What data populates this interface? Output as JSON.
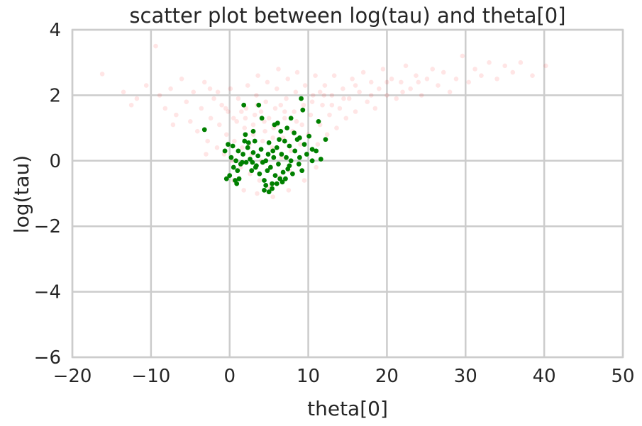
{
  "chart_data": {
    "type": "scatter",
    "title": "scatter plot between log(tau) and theta[0]",
    "xlabel": "theta[0]",
    "ylabel": "log(tau)",
    "xlim": [
      -20,
      50
    ],
    "ylim": [
      -6,
      4
    ],
    "xticks": [
      -20,
      -10,
      0,
      10,
      20,
      30,
      40,
      50
    ],
    "yticks": [
      -6,
      -4,
      -2,
      0,
      2,
      4
    ],
    "xtick_labels": [
      "−20",
      "−10",
      "0",
      "10",
      "20",
      "30",
      "40",
      "50"
    ],
    "ytick_labels": [
      "−6",
      "−4",
      "−2",
      "0",
      "2",
      "4"
    ],
    "grid": true,
    "series": [
      {
        "color": "#ff0000",
        "alpha": 0.1,
        "points": [
          [
            -16.2,
            2.65
          ],
          [
            -13.5,
            2.1
          ],
          [
            -11.8,
            1.9
          ],
          [
            -10.6,
            2.3
          ],
          [
            -9.4,
            3.5
          ],
          [
            -8.9,
            2.0
          ],
          [
            -8.2,
            1.6
          ],
          [
            -7.5,
            2.2
          ],
          [
            -6.8,
            1.4
          ],
          [
            -6.1,
            2.5
          ],
          [
            -5.5,
            1.8
          ],
          [
            -5.0,
            1.2
          ],
          [
            -4.6,
            2.1
          ],
          [
            -4.1,
            0.9
          ],
          [
            -3.6,
            1.6
          ],
          [
            -3.2,
            2.4
          ],
          [
            -2.8,
            0.6
          ],
          [
            -2.4,
            1.3
          ],
          [
            -2.0,
            1.9
          ],
          [
            -1.6,
            0.4
          ],
          [
            -1.3,
            1.1
          ],
          [
            -1.0,
            1.7
          ],
          [
            -0.7,
            0.2
          ],
          [
            -0.4,
            0.8
          ],
          [
            -0.2,
            1.5
          ],
          [
            0.1,
            2.2
          ],
          [
            0.3,
            0.0
          ],
          [
            0.6,
            0.6
          ],
          [
            0.9,
            1.2
          ],
          [
            1.1,
            1.9
          ],
          [
            1.4,
            -0.2
          ],
          [
            1.6,
            0.4
          ],
          [
            1.9,
            1.0
          ],
          [
            2.1,
            1.6
          ],
          [
            2.3,
            2.3
          ],
          [
            2.6,
            -0.4
          ],
          [
            2.8,
            0.2
          ],
          [
            3.0,
            0.8
          ],
          [
            3.2,
            1.4
          ],
          [
            3.4,
            2.0
          ],
          [
            3.6,
            2.6
          ],
          [
            3.8,
            -0.6
          ],
          [
            4.0,
            0.0
          ],
          [
            4.2,
            0.6
          ],
          [
            4.4,
            1.2
          ],
          [
            4.6,
            1.8
          ],
          [
            4.8,
            2.4
          ],
          [
            5.0,
            -0.8
          ],
          [
            5.2,
            -0.2
          ],
          [
            5.4,
            0.4
          ],
          [
            5.6,
            1.0
          ],
          [
            5.8,
            1.6
          ],
          [
            6.0,
            2.2
          ],
          [
            6.2,
            2.8
          ],
          [
            6.4,
            -0.5
          ],
          [
            6.6,
            0.1
          ],
          [
            6.8,
            0.7
          ],
          [
            7.0,
            1.3
          ],
          [
            7.2,
            1.9
          ],
          [
            7.4,
            2.5
          ],
          [
            7.6,
            -0.3
          ],
          [
            7.8,
            0.3
          ],
          [
            8.0,
            0.9
          ],
          [
            8.2,
            1.5
          ],
          [
            8.4,
            2.1
          ],
          [
            8.6,
            2.7
          ],
          [
            8.8,
            -0.1
          ],
          [
            9.0,
            0.5
          ],
          [
            9.2,
            1.1
          ],
          [
            9.4,
            1.7
          ],
          [
            9.6,
            2.3
          ],
          [
            9.8,
            0.2
          ],
          [
            10.0,
            0.8
          ],
          [
            10.3,
            1.4
          ],
          [
            10.6,
            2.0
          ],
          [
            10.9,
            2.6
          ],
          [
            11.2,
            0.5
          ],
          [
            11.5,
            1.1
          ],
          [
            11.8,
            1.7
          ],
          [
            12.1,
            2.3
          ],
          [
            12.4,
            0.8
          ],
          [
            12.7,
            1.4
          ],
          [
            13.0,
            2.0
          ],
          [
            13.3,
            2.6
          ],
          [
            13.6,
            1.0
          ],
          [
            14.0,
            1.6
          ],
          [
            14.4,
            2.2
          ],
          [
            14.8,
            1.3
          ],
          [
            15.2,
            1.9
          ],
          [
            15.6,
            2.5
          ],
          [
            16.0,
            1.5
          ],
          [
            16.5,
            2.1
          ],
          [
            17.0,
            2.7
          ],
          [
            17.5,
            1.8
          ],
          [
            18.0,
            2.4
          ],
          [
            18.5,
            1.6
          ],
          [
            19.0,
            2.2
          ],
          [
            19.5,
            2.8
          ],
          [
            20.0,
            2.0
          ],
          [
            20.6,
            2.5
          ],
          [
            21.2,
            1.9
          ],
          [
            21.8,
            2.4
          ],
          [
            22.4,
            2.9
          ],
          [
            23.0,
            2.2
          ],
          [
            23.7,
            2.6
          ],
          [
            24.4,
            2.0
          ],
          [
            25.1,
            2.5
          ],
          [
            25.8,
            2.8
          ],
          [
            26.5,
            2.3
          ],
          [
            27.2,
            2.7
          ],
          [
            28.0,
            2.1
          ],
          [
            28.8,
            2.5
          ],
          [
            29.6,
            3.2
          ],
          [
            30.4,
            2.4
          ],
          [
            31.2,
            2.8
          ],
          [
            32.0,
            2.6
          ],
          [
            33.0,
            3.0
          ],
          [
            34.0,
            2.5
          ],
          [
            35.0,
            2.9
          ],
          [
            36.0,
            2.7
          ],
          [
            37.0,
            3.0
          ],
          [
            38.5,
            2.6
          ],
          [
            40.2,
            2.9
          ],
          [
            -12.5,
            1.7
          ],
          [
            -7.2,
            1.1
          ],
          [
            -3.0,
            0.2
          ],
          [
            0.5,
            -0.6
          ],
          [
            1.8,
            -0.9
          ],
          [
            3.5,
            -1.0
          ],
          [
            5.5,
            -1.1
          ],
          [
            7.5,
            -0.9
          ],
          [
            9.5,
            -0.6
          ],
          [
            11.0,
            -0.2
          ],
          [
            2.0,
            1.3
          ],
          [
            3.0,
            1.1
          ],
          [
            4.0,
            1.5
          ],
          [
            5.0,
            1.3
          ],
          [
            6.0,
            1.1
          ],
          [
            7.0,
            1.5
          ],
          [
            4.5,
            0.9
          ],
          [
            5.5,
            0.7
          ],
          [
            6.5,
            1.7
          ],
          [
            3.5,
            1.7
          ],
          [
            8.5,
            1.2
          ],
          [
            2.5,
            0.5
          ],
          [
            1.5,
            1.5
          ],
          [
            0.5,
            1.3
          ],
          [
            -0.5,
            1.6
          ],
          [
            -1.5,
            2.1
          ],
          [
            -2.5,
            2.2
          ],
          [
            12.0,
            2.0
          ],
          [
            13.0,
            1.7
          ],
          [
            14.5,
            1.9
          ],
          [
            16.0,
            2.3
          ],
          [
            18.0,
            2.0
          ],
          [
            20.0,
            2.4
          ],
          [
            22.0,
            2.1
          ],
          [
            24.0,
            2.4
          ],
          [
            10.5,
            1.8
          ],
          [
            11.5,
            2.1
          ]
        ]
      },
      {
        "color": "#008000",
        "alpha": 1.0,
        "points": [
          [
            -3.2,
            0.95
          ],
          [
            -0.6,
            0.3
          ],
          [
            -0.2,
            0.5
          ],
          [
            0.2,
            0.1
          ],
          [
            0.5,
            -0.2
          ],
          [
            -0.4,
            -0.55
          ],
          [
            0.0,
            -0.45
          ],
          [
            0.7,
            -0.6
          ],
          [
            0.9,
            -0.7
          ],
          [
            1.2,
            -0.55
          ],
          [
            0.4,
            0.45
          ],
          [
            0.8,
            0.0
          ],
          [
            1.1,
            0.3
          ],
          [
            1.4,
            -0.1
          ],
          [
            1.7,
            0.2
          ],
          [
            1.9,
            0.6
          ],
          [
            2.1,
            -0.05
          ],
          [
            2.3,
            0.4
          ],
          [
            2.6,
            0.05
          ],
          [
            2.8,
            -0.3
          ],
          [
            3.0,
            0.25
          ],
          [
            3.2,
            0.6
          ],
          [
            3.4,
            -0.15
          ],
          [
            3.6,
            0.15
          ],
          [
            3.8,
            -0.4
          ],
          [
            4.0,
            0.35
          ],
          [
            4.2,
            -0.05
          ],
          [
            4.4,
            -0.6
          ],
          [
            4.6,
            0.0
          ],
          [
            4.8,
            -0.3
          ],
          [
            5.0,
            0.55
          ],
          [
            5.2,
            -0.2
          ],
          [
            5.4,
            -0.7
          ],
          [
            5.6,
            0.1
          ],
          [
            5.8,
            -0.45
          ],
          [
            6.0,
            0.4
          ],
          [
            6.2,
            -0.1
          ],
          [
            6.4,
            -0.55
          ],
          [
            6.6,
            0.2
          ],
          [
            6.8,
            -0.35
          ],
          [
            7.0,
            0.6
          ],
          [
            7.2,
            0.1
          ],
          [
            7.4,
            -0.25
          ],
          [
            7.6,
            0.45
          ],
          [
            7.8,
            0.0
          ],
          [
            8.0,
            -0.4
          ],
          [
            8.3,
            0.3
          ],
          [
            8.6,
            0.65
          ],
          [
            8.9,
            0.1
          ],
          [
            9.2,
            -0.3
          ],
          [
            9.5,
            0.5
          ],
          [
            9.8,
            0.2
          ],
          [
            10.1,
            0.75
          ],
          [
            10.5,
            0.35
          ],
          [
            11.0,
            0.3
          ],
          [
            11.3,
            1.2
          ],
          [
            11.6,
            0.05
          ],
          [
            12.2,
            0.65
          ],
          [
            1.8,
            1.7
          ],
          [
            3.7,
            1.7
          ],
          [
            4.1,
            1.3
          ],
          [
            5.7,
            1.1
          ],
          [
            6.1,
            1.15
          ],
          [
            6.5,
            0.9
          ],
          [
            7.3,
            1.0
          ],
          [
            7.8,
            1.3
          ],
          [
            9.1,
            1.9
          ],
          [
            9.3,
            1.55
          ],
          [
            4.4,
            -0.9
          ],
          [
            5.0,
            -0.95
          ],
          [
            5.4,
            -0.85
          ],
          [
            4.6,
            -0.75
          ],
          [
            6.0,
            -0.7
          ],
          [
            6.7,
            -0.65
          ],
          [
            2.0,
            0.8
          ],
          [
            2.4,
            0.55
          ],
          [
            3.0,
            0.9
          ],
          [
            8.2,
            0.85
          ],
          [
            8.9,
            0.7
          ],
          [
            10.5,
            0.0
          ],
          [
            1.0,
            -0.3
          ],
          [
            1.6,
            -0.05
          ],
          [
            3.3,
            -0.2
          ],
          [
            5.5,
            0.3
          ],
          [
            6.3,
            0.65
          ],
          [
            7.6,
            -0.15
          ],
          [
            8.8,
            -0.1
          ],
          [
            2.9,
            -0.05
          ],
          [
            4.9,
            0.2
          ],
          [
            7.1,
            -0.55
          ]
        ]
      }
    ]
  }
}
